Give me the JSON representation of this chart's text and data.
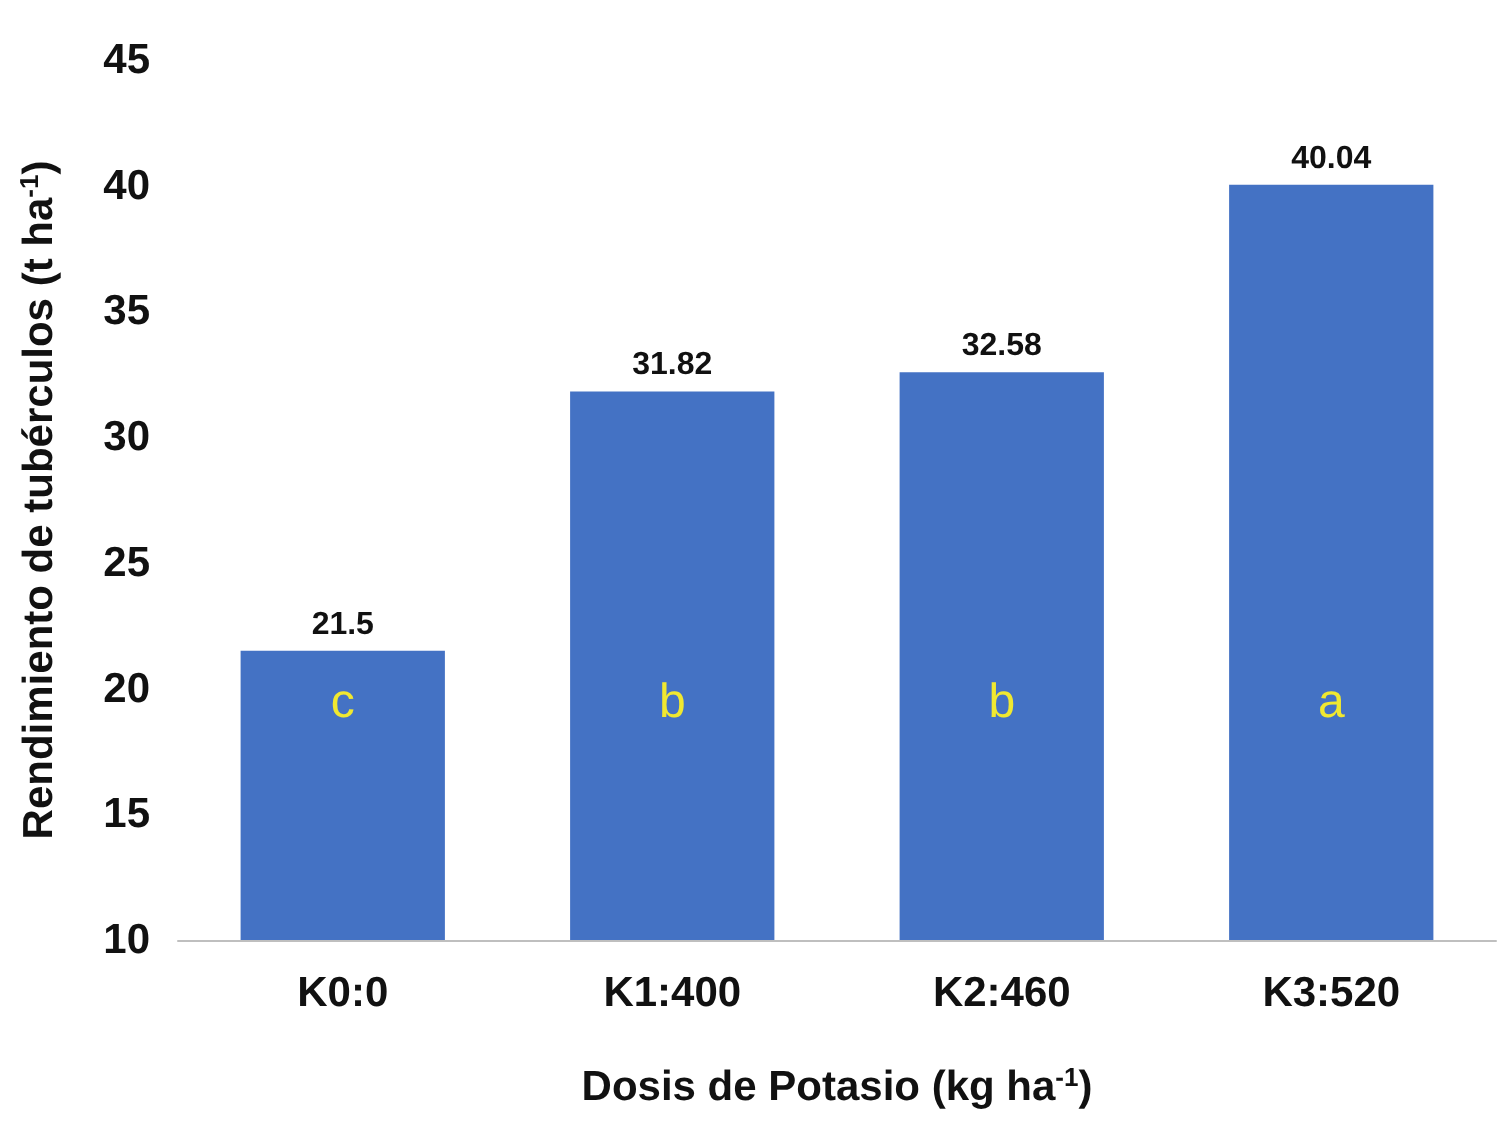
{
  "chart_data": {
    "type": "bar",
    "categories": [
      "K0:0",
      "K1:400",
      "K2:460",
      "K3:520"
    ],
    "values": [
      21.5,
      31.82,
      32.58,
      40.04
    ],
    "color": "#4472c4",
    "xlabel": "Dosis de Potasio (kg ha$^{-1}$)",
    "ylabel": "Rendimiento de tubérculos (t ha$^{-1}$)",
    "ylim": [
      10,
      45
    ],
    "yticks": [
      10,
      15,
      20,
      25,
      30,
      35,
      40,
      45
    ],
    "grid": false,
    "data_labels": true,
    "annotations": [
      "c",
      "b",
      "b",
      "a"
    ]
  }
}
